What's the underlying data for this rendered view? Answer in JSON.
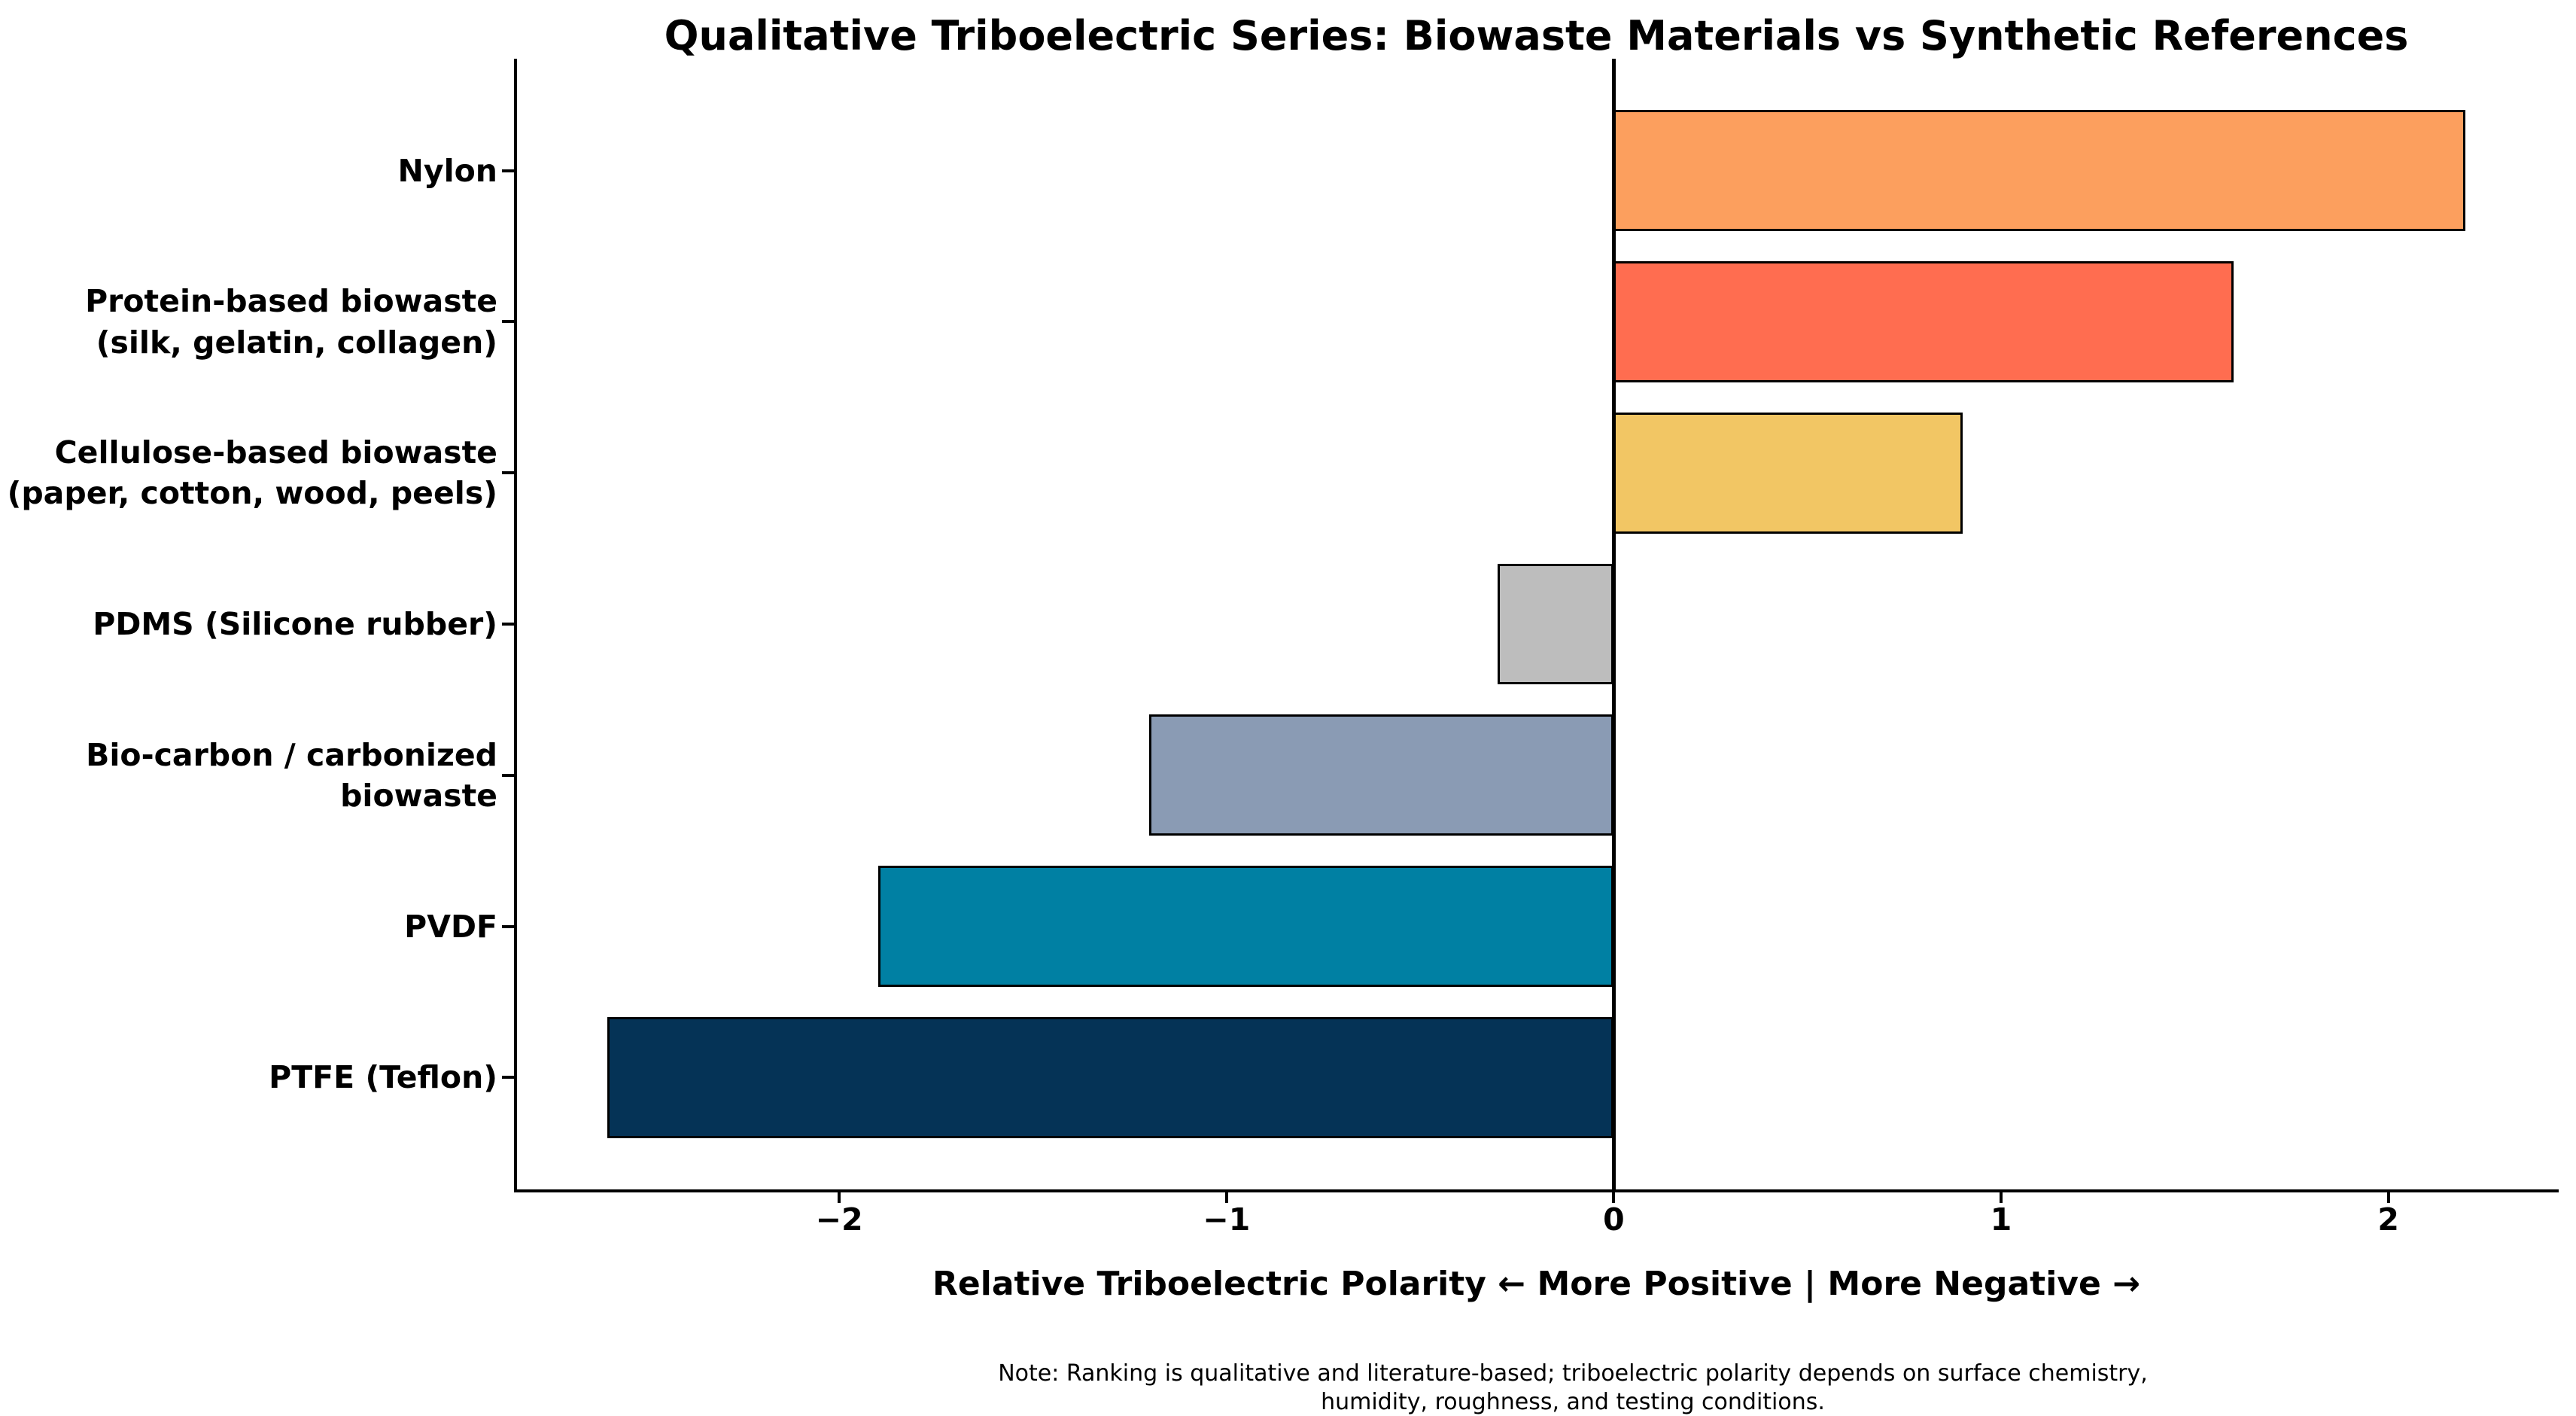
{
  "chart_data": {
    "type": "bar",
    "orientation": "horizontal",
    "title": "Qualitative Triboelectric Series: Biowaste Materials vs Synthetic References",
    "xlabel": "Relative Triboelectric Polarity  ← More Positive | More Negative →",
    "categories": [
      "Nylon",
      "Protein-based biowaste\n(silk, gelatin, collagen)",
      "Cellulose-based biowaste\n(paper, cotton, wood, peels)",
      "PDMS (Silicone rubber)",
      "Bio-carbon / carbonized biowaste",
      "PVDF",
      "PTFE (Teflon)"
    ],
    "values": [
      2.2,
      1.6,
      0.9,
      -0.3,
      -1.2,
      -1.9,
      -2.6
    ],
    "bar_colors": [
      "#FC9F5E",
      "#FF6D50",
      "#F2C664",
      "#BDBDBD",
      "#8A9BB4",
      "#0080A3",
      "#053356"
    ],
    "bar_edge_color": "#000000",
    "xlim": [
      -2.84,
      2.44
    ],
    "x_ticks": [
      -2,
      -1,
      0,
      1,
      2
    ],
    "x_tick_labels": [
      "−2",
      "−1",
      "0",
      "1",
      "2"
    ],
    "zero_line": true,
    "grid": false,
    "legend": null,
    "note": "Note: Ranking is qualitative and literature-based; triboelectric polarity depends on surface chemistry,\nhumidity, roughness, and testing conditions."
  },
  "figure": {
    "note_line1": "Note: Ranking is qualitative and literature-based; triboelectric polarity depends on surface chemistry,",
    "note_line2": "humidity, roughness, and testing conditions."
  }
}
